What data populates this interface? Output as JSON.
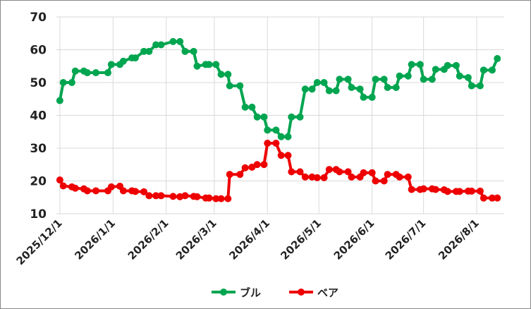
{
  "chart_data": {
    "type": "line",
    "x": [
      "2025/12/1",
      "2025/12/3",
      "2025/12/8",
      "2025/12/10",
      "2025/12/15",
      "2025/12/17",
      "2025/12/22",
      "2025/12/29",
      "2025/12/31",
      "2026/1/5",
      "2026/1/7",
      "2026/1/12",
      "2026/1/14",
      "2026/1/19",
      "2026/1/22",
      "2026/1/26",
      "2026/1/29",
      "2026/2/5",
      "2026/2/9",
      "2026/2/12",
      "2026/2/17",
      "2026/2/19",
      "2026/2/24",
      "2026/2/26",
      "2026/3/2",
      "2026/3/5",
      "2026/3/9",
      "2026/3/10",
      "2026/3/16",
      "2026/3/19",
      "2026/3/23",
      "2026/3/26",
      "2026/3/30",
      "2026/4/1",
      "2026/4/6",
      "2026/4/9",
      "2026/4/13",
      "2026/4/15",
      "2026/4/20",
      "2026/4/23",
      "2026/4/27",
      "2026/4/30",
      "2026/5/4",
      "2026/5/7",
      "2026/5/11",
      "2026/5/13",
      "2026/5/18",
      "2026/5/20",
      "2026/5/25",
      "2026/5/27",
      "2026/6/1",
      "2026/6/3",
      "2026/6/8",
      "2026/6/10",
      "2026/6/15",
      "2026/6/17",
      "2026/6/22",
      "2026/6/24",
      "2026/6/29",
      "2026/7/1",
      "2026/7/6",
      "2026/7/8",
      "2026/7/13",
      "2026/7/15",
      "2026/7/20",
      "2026/7/22",
      "2026/7/27",
      "2026/7/29",
      "2026/8/3",
      "2026/8/5",
      "2026/8/10",
      "2026/8/13"
    ],
    "series": [
      {
        "name": "ブル",
        "color": "#00a550",
        "values": [
          44.5,
          50,
          50,
          53.5,
          53.5,
          53,
          53,
          53,
          55.5,
          55.5,
          56.5,
          57.5,
          57.5,
          59.5,
          59.5,
          61.5,
          61.5,
          62.5,
          62.5,
          59.5,
          59.5,
          55,
          55.5,
          55.5,
          55.5,
          52.5,
          52.5,
          49,
          49,
          42.5,
          42.5,
          39.5,
          39.5,
          35.5,
          35.5,
          33.5,
          33.5,
          39.5,
          39.5,
          48,
          48,
          50,
          50,
          47.5,
          47.5,
          51,
          51,
          48.5,
          48,
          45.5,
          45.5,
          51,
          51,
          48.5,
          48.5,
          52,
          52,
          55.5,
          55.5,
          51,
          51,
          54,
          54,
          55.2,
          55.2,
          52,
          51.5,
          49,
          49,
          53.8,
          53.8,
          57.3
        ]
      },
      {
        "name": "ベア",
        "color": "#ee0000",
        "values": [
          20.3,
          18.5,
          18.2,
          17.8,
          17.6,
          17,
          17,
          17,
          18.2,
          18.4,
          17,
          17,
          16.8,
          16.7,
          15.5,
          15.5,
          15.5,
          15.3,
          15.2,
          15.5,
          15.3,
          15.2,
          14.8,
          14.8,
          14.6,
          14.6,
          14.6,
          22,
          22,
          24,
          24.2,
          25,
          25,
          31.5,
          31.5,
          27.8,
          27.8,
          22.8,
          22.8,
          21.2,
          21.2,
          21,
          21,
          23.5,
          23.5,
          22.8,
          22.8,
          21.2,
          21.2,
          22.5,
          22.5,
          20,
          20,
          22,
          22,
          21.2,
          21.2,
          17.4,
          17.4,
          17.6,
          17.6,
          17.4,
          17.3,
          16.8,
          16.8,
          16.8,
          16.9,
          16.9,
          16.9,
          14.8,
          14.8,
          14.8
        ]
      }
    ],
    "xlim": [
      "2025/11/29",
      "2026/8/17"
    ],
    "xticks": [
      "2025/12/1",
      "2026/1/1",
      "2026/2/1",
      "2026/3/1",
      "2026/4/1",
      "2026/5/1",
      "2026/6/1",
      "2026/7/1",
      "2026/8/1"
    ],
    "ylim": [
      10,
      70
    ],
    "yticks": [
      10,
      20,
      30,
      40,
      50,
      60,
      70
    ],
    "grid": true,
    "legend": "bottom"
  }
}
